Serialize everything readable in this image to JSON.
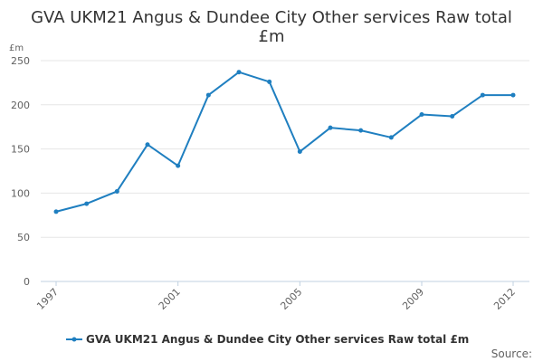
{
  "chart_data": {
    "type": "line",
    "title_line1": "GVA UKM21 Angus & Dundee City Other services Raw total",
    "title_line2": "£m",
    "ylabel": "£m",
    "ylim": [
      0,
      250
    ],
    "yticks": [
      "0",
      "50",
      "100",
      "150",
      "200",
      "250"
    ],
    "xlim": [
      1997,
      2012
    ],
    "xticks": [
      "1997",
      "2001",
      "2005",
      "2009",
      "2012"
    ],
    "grid": true,
    "legend_position": "bottom",
    "series": [
      {
        "name": "GVA UKM21 Angus & Dundee City Other services Raw total £m",
        "color": "#1f7fc0",
        "x": [
          1997,
          1998,
          1999,
          2000,
          2001,
          2002,
          2003,
          2004,
          2005,
          2006,
          2007,
          2008,
          2009,
          2010,
          2011,
          2012
        ],
        "values": [
          79,
          88,
          102,
          155,
          131,
          211,
          237,
          226,
          147,
          174,
          171,
          163,
          189,
          187,
          211,
          211
        ]
      }
    ]
  },
  "footer": {
    "source_label": "Source:"
  }
}
